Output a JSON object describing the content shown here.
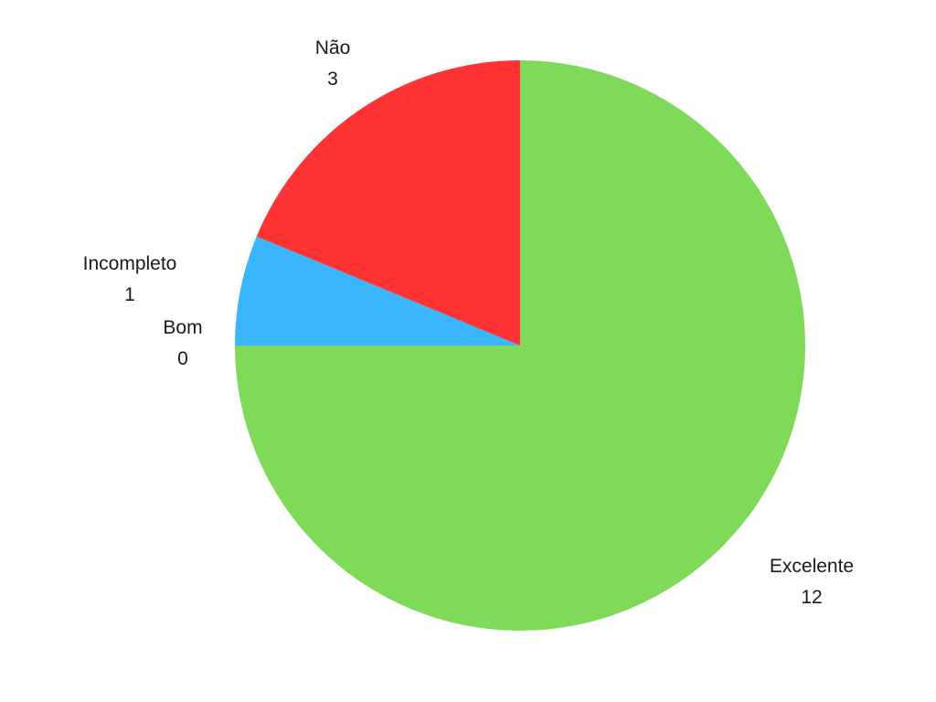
{
  "chart_data": {
    "type": "pie",
    "title": "",
    "start_angle_deg": 0,
    "direction": "clockwise",
    "slices": [
      {
        "label": "Excelente",
        "value": 12,
        "color": "#80da5a"
      },
      {
        "label": "Bom",
        "value": 0,
        "color": "#39b6ff"
      },
      {
        "label": "Incompleto",
        "value": 1,
        "color": "#39b6ff"
      },
      {
        "label": "Não",
        "value": 3,
        "color": "#ff3334"
      }
    ]
  }
}
